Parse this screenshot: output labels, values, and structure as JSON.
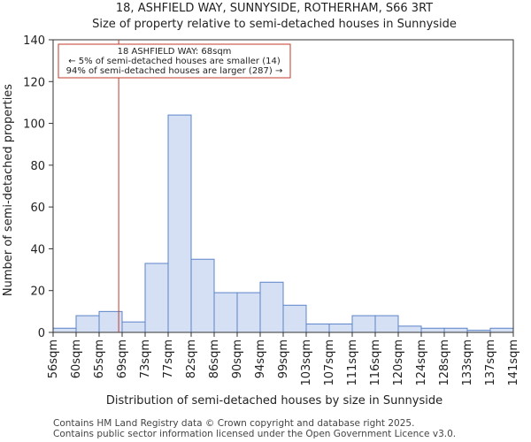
{
  "chart_data": {
    "type": "bar",
    "title": "18, ASHFIELD WAY, SUNNYSIDE, ROTHERHAM, S66 3RT",
    "subtitle": "Size of property relative to semi-detached houses in Sunnyside",
    "xlabel": "Distribution of semi-detached houses by size in Sunnyside",
    "ylabel": "Number of semi-detached properties",
    "ylim": [
      0,
      140
    ],
    "yticks": [
      0,
      20,
      40,
      60,
      80,
      100,
      120,
      140
    ],
    "xtick_labels": [
      "56sqm",
      "60sqm",
      "65sqm",
      "69sqm",
      "73sqm",
      "77sqm",
      "82sqm",
      "86sqm",
      "90sqm",
      "94sqm",
      "99sqm",
      "103sqm",
      "107sqm",
      "111sqm",
      "116sqm",
      "120sqm",
      "124sqm",
      "128sqm",
      "133sqm",
      "137sqm",
      "141sqm"
    ],
    "values": [
      2,
      8,
      10,
      5,
      33,
      104,
      35,
      19,
      19,
      24,
      13,
      4,
      4,
      8,
      8,
      3,
      2,
      2,
      1,
      2
    ],
    "marker": {
      "value_bin_position": 2.85,
      "color": "#c0392b"
    },
    "annotation": {
      "line1": "18 ASHFIELD WAY: 68sqm",
      "line2": "← 5% of semi-detached houses are smaller (14)",
      "line3": "94% of semi-detached houses are larger (287) →"
    },
    "bar_fill": "#d6e0f5",
    "bar_edge": "#5b84c9"
  },
  "footer": {
    "line1": "Contains HM Land Registry data © Crown copyright and database right 2025.",
    "line2": "Contains public sector information licensed under the Open Government Licence v3.0."
  }
}
